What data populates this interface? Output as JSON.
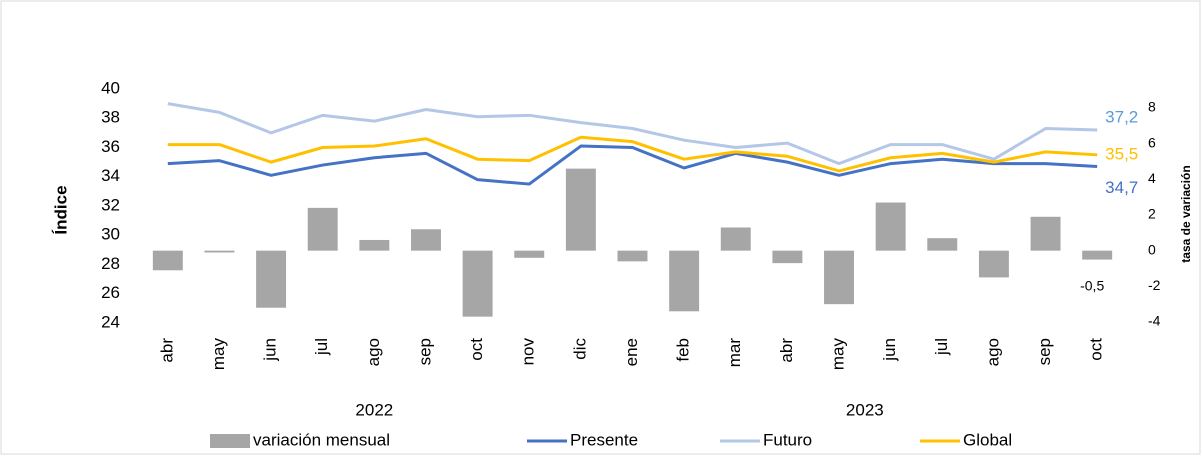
{
  "chart_data": {
    "type": "bar-line",
    "y_label": "Índice",
    "y2_label": "tasa de variación",
    "categories": [
      "abr",
      "may",
      "jun",
      "jul",
      "ago",
      "sep",
      "oct",
      "nov",
      "dic",
      "ene",
      "feb",
      "mar",
      "abr",
      "may",
      "jun",
      "jul",
      "ago",
      "sep",
      "oct"
    ],
    "x_groups": [
      {
        "label": "2022",
        "count": 9
      },
      {
        "label": "2023",
        "count": 10
      }
    ],
    "ylim": [
      24,
      40
    ],
    "yticks": [
      24,
      26,
      28,
      30,
      32,
      34,
      36,
      38,
      40
    ],
    "y2lim": [
      -4,
      8
    ],
    "y2ticks": [
      -4,
      -2,
      0,
      2,
      4,
      6,
      8
    ],
    "legend": "bottom",
    "series": [
      {
        "name": "variación mensual",
        "type": "bar",
        "axis": "y2",
        "color": "#a6a6a6",
        "values": [
          -1.1,
          -0.1,
          -3.2,
          2.4,
          0.6,
          1.2,
          -3.7,
          -0.4,
          4.6,
          -0.6,
          -3.4,
          1.3,
          -0.7,
          -3.0,
          2.7,
          0.7,
          -1.5,
          1.9,
          -0.5
        ],
        "value_labels": [
          null,
          null,
          null,
          null,
          null,
          null,
          null,
          null,
          null,
          null,
          null,
          null,
          null,
          null,
          null,
          null,
          null,
          null,
          "-0,5"
        ]
      },
      {
        "name": "Presente",
        "type": "line",
        "color": "#4472c4",
        "values": [
          34.9,
          35.1,
          34.1,
          34.8,
          35.3,
          35.6,
          33.8,
          33.5,
          36.1,
          36.0,
          34.6,
          35.6,
          35.0,
          34.1,
          34.9,
          35.2,
          34.9,
          34.9,
          34.7
        ],
        "value_labels": [
          null,
          null,
          null,
          null,
          null,
          null,
          null,
          null,
          null,
          null,
          null,
          null,
          null,
          null,
          null,
          null,
          null,
          null,
          "34,7"
        ]
      },
      {
        "name": "Futuro",
        "type": "line",
        "color": "#b4c7e7",
        "values": [
          39.0,
          38.4,
          37.0,
          38.2,
          37.8,
          38.6,
          38.1,
          38.2,
          37.7,
          37.3,
          36.5,
          36.0,
          36.3,
          34.9,
          36.2,
          36.2,
          35.2,
          37.3,
          37.2
        ],
        "value_labels": [
          null,
          null,
          null,
          null,
          null,
          null,
          null,
          null,
          null,
          null,
          null,
          null,
          null,
          null,
          null,
          null,
          null,
          null,
          "37,2"
        ]
      },
      {
        "name": "Global",
        "type": "line",
        "color": "#ffc000",
        "values": [
          36.2,
          36.2,
          35.0,
          36.0,
          36.1,
          36.6,
          35.2,
          35.1,
          36.7,
          36.4,
          35.2,
          35.7,
          35.4,
          34.4,
          35.3,
          35.6,
          35.0,
          35.7,
          35.5
        ],
        "value_labels": [
          null,
          null,
          null,
          null,
          null,
          null,
          null,
          null,
          null,
          null,
          null,
          null,
          null,
          null,
          null,
          null,
          null,
          null,
          "35,5"
        ]
      }
    ]
  }
}
